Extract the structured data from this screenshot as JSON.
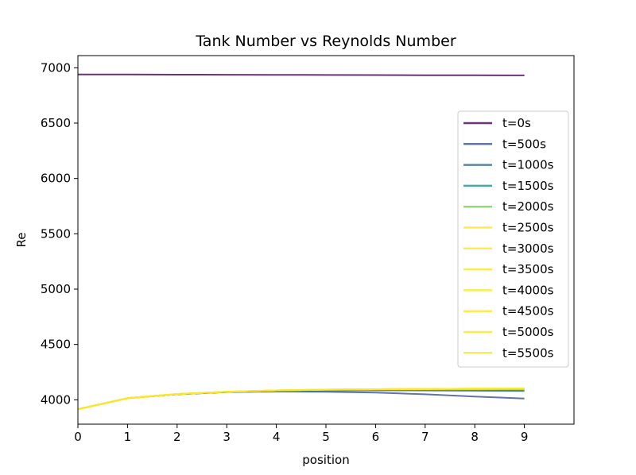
{
  "chart_data": {
    "type": "line",
    "title": "Tank Number vs Reynolds Number",
    "xlabel": "position",
    "ylabel": "Re",
    "xlim": [
      0,
      10
    ],
    "ylim": [
      3780,
      7110
    ],
    "xticks": [
      0,
      1,
      2,
      3,
      4,
      5,
      6,
      7,
      8,
      9
    ],
    "yticks": [
      4000,
      4500,
      5000,
      5500,
      6000,
      6500,
      7000
    ],
    "grid": false,
    "legend_position": "right",
    "x": [
      0,
      1,
      2,
      3,
      4,
      5,
      6,
      7,
      8,
      9
    ],
    "series": [
      {
        "name": "t=0s",
        "color": "#440154",
        "values": [
          6940,
          6939,
          6938,
          6937,
          6936,
          6935,
          6934,
          6933,
          6932,
          6931
        ]
      },
      {
        "name": "t=500s",
        "color": "#3b528b",
        "values": [
          3915,
          4015,
          4050,
          4070,
          4075,
          4072,
          4065,
          4050,
          4030,
          4012
        ]
      },
      {
        "name": "t=1000s",
        "color": "#31688e",
        "values": [
          3915,
          4015,
          4050,
          4070,
          4078,
          4083,
          4085,
          4084,
          4082,
          4080
        ]
      },
      {
        "name": "t=1500s",
        "color": "#21918c",
        "values": [
          3915,
          4015,
          4052,
          4072,
          4082,
          4088,
          4090,
          4090,
          4090,
          4090
        ]
      },
      {
        "name": "t=2000s",
        "color": "#7ad151",
        "values": [
          3915,
          4015,
          4052,
          4073,
          4084,
          4090,
          4093,
          4094,
          4095,
          4096
        ]
      },
      {
        "name": "t=2500s",
        "color": "#fde725",
        "values": [
          3915,
          4015,
          4052,
          4073,
          4085,
          4091,
          4095,
          4097,
          4098,
          4099
        ]
      },
      {
        "name": "t=3000s",
        "color": "#fde725",
        "values": [
          3915,
          4015,
          4052,
          4073,
          4085,
          4092,
          4096,
          4098,
          4099,
          4100
        ]
      },
      {
        "name": "t=3500s",
        "color": "#fde725",
        "values": [
          3915,
          4015,
          4052,
          4073,
          4085,
          4092,
          4096,
          4098,
          4100,
          4101
        ]
      },
      {
        "name": "t=4000s",
        "color": "#fde725",
        "values": [
          3915,
          4015,
          4052,
          4073,
          4085,
          4092,
          4096,
          4099,
          4100,
          4101
        ]
      },
      {
        "name": "t=4500s",
        "color": "#fde725",
        "values": [
          3915,
          4015,
          4052,
          4073,
          4085,
          4092,
          4096,
          4099,
          4100,
          4101
        ]
      },
      {
        "name": "t=5000s",
        "color": "#fde725",
        "values": [
          3915,
          4015,
          4052,
          4073,
          4085,
          4092,
          4096,
          4099,
          4100,
          4101
        ]
      },
      {
        "name": "t=5500s",
        "color": "#fde725",
        "values": [
          3915,
          4015,
          4052,
          4073,
          4085,
          4092,
          4096,
          4099,
          4100,
          4101
        ]
      }
    ]
  }
}
